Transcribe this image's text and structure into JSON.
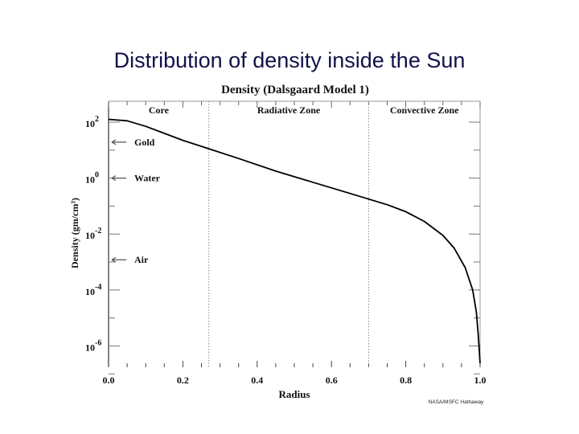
{
  "slide": {
    "title": "Distribution of density inside the Sun",
    "title_color": "#12124a"
  },
  "chart_data": {
    "type": "line",
    "title": "Density (Dalsgaard Model 1)",
    "xlabel": "Radius",
    "ylabel": "Density (gm/cm³)",
    "xlim": [
      0.0,
      1.0
    ],
    "ylim_log10": [
      -7.5,
      2.75
    ],
    "yscale": "log",
    "x_ticks": [
      "0.0",
      "0.2",
      "0.4",
      "0.6",
      "0.8",
      "1.0"
    ],
    "y_ticks": [
      {
        "base": "10",
        "exp": "2"
      },
      {
        "base": "10",
        "exp": "0"
      },
      {
        "base": "10",
        "exp": "-2"
      },
      {
        "base": "10",
        "exp": "-4"
      },
      {
        "base": "10",
        "exp": "-6"
      }
    ],
    "zones": [
      {
        "label": "Core",
        "from": 0.0,
        "to": 0.27
      },
      {
        "label": "Radiative Zone",
        "from": 0.27,
        "to": 0.7
      },
      {
        "label": "Convective Zone",
        "from": 0.7,
        "to": 1.0
      }
    ],
    "reference_markers": [
      {
        "label": "Gold",
        "density": 19.3
      },
      {
        "label": "Water",
        "density": 1.0
      },
      {
        "label": "Air",
        "density": 0.0012
      }
    ],
    "series": [
      {
        "name": "Density",
        "x": [
          0.0,
          0.05,
          0.1,
          0.15,
          0.2,
          0.27,
          0.35,
          0.45,
          0.55,
          0.65,
          0.7,
          0.75,
          0.8,
          0.85,
          0.9,
          0.93,
          0.96,
          0.98,
          0.99,
          0.995,
          1.0
        ],
        "log10_density": [
          2.1,
          2.05,
          1.85,
          1.6,
          1.35,
          1.05,
          0.7,
          0.25,
          -0.15,
          -0.55,
          -0.75,
          -0.95,
          -1.2,
          -1.55,
          -2.05,
          -2.5,
          -3.2,
          -4.0,
          -4.8,
          -5.6,
          -7.2
        ]
      }
    ],
    "credit": "NASA/MSFC Hathaway",
    "grid": false
  }
}
